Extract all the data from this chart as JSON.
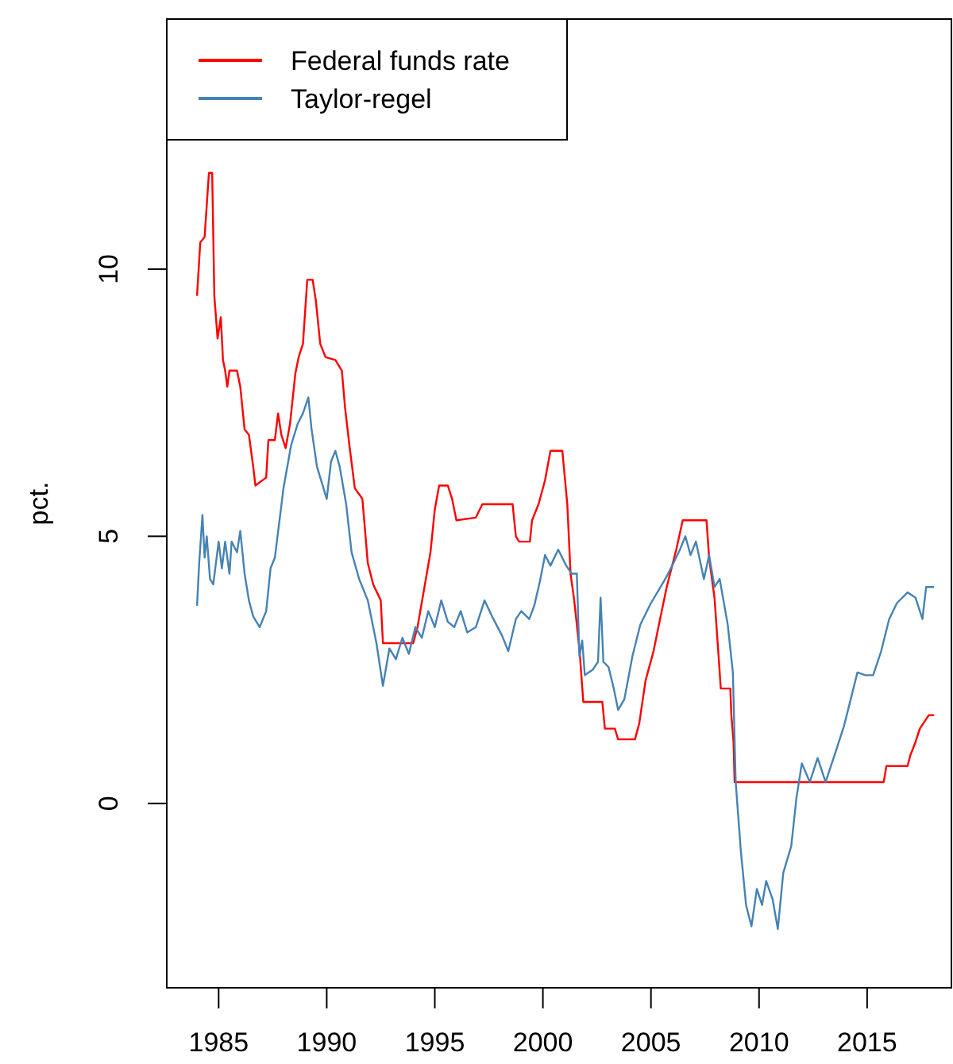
{
  "chart_data": {
    "type": "line",
    "ylabel": "pct.",
    "xlim": [
      1982.6,
      2018.9
    ],
    "xticks": [
      1985,
      1990,
      1995,
      2000,
      2005,
      2010,
      2015
    ],
    "ylim": [
      -3.45,
      14.68
    ],
    "yticks": [
      0,
      5,
      10
    ],
    "grid": false,
    "legend": "top left",
    "series": [
      {
        "name": "Federal funds rate",
        "color": "#ff0000",
        "x": [
          1984.0,
          1984.15,
          1984.35,
          1984.55,
          1984.7,
          1984.8,
          1984.95,
          1985.1,
          1985.2,
          1985.3,
          1985.4,
          1985.5,
          1985.85,
          1986.0,
          1986.2,
          1986.4,
          1986.6,
          1986.7,
          1987.2,
          1987.3,
          1987.6,
          1987.75,
          1987.9,
          1988.1,
          1988.3,
          1988.55,
          1988.7,
          1988.9,
          1989.1,
          1989.35,
          1989.5,
          1989.7,
          1989.95,
          1990.4,
          1990.7,
          1990.85,
          1991.05,
          1991.3,
          1991.65,
          1991.9,
          1992.15,
          1992.5,
          1992.6,
          1994.0,
          1994.2,
          1994.5,
          1994.8,
          1995.0,
          1995.2,
          1995.6,
          1995.8,
          1996.0,
          1996.9,
          1997.2,
          1998.6,
          1998.75,
          1998.9,
          1999.4,
          1999.5,
          1999.8,
          2000.1,
          2000.35,
          2000.9,
          2001.13,
          2001.28,
          2001.45,
          2001.7,
          2001.87,
          2002.75,
          2002.87,
          2003.33,
          2003.48,
          2004.26,
          2004.46,
          2004.75,
          2005.12,
          2005.37,
          2005.73,
          2006.17,
          2006.47,
          2007.57,
          2007.69,
          2007.94,
          2008.13,
          2008.23,
          2008.67,
          2008.72,
          2008.82,
          2008.87,
          2015.77,
          2015.89,
          2016.87,
          2017.0,
          2017.24,
          2017.44,
          2017.85,
          2018.1
        ],
        "values": [
          9.5,
          10.5,
          10.6,
          11.8,
          11.8,
          9.5,
          8.7,
          9.1,
          8.3,
          8.1,
          7.8,
          8.1,
          8.1,
          7.8,
          7.0,
          6.9,
          6.3,
          5.95,
          6.1,
          6.8,
          6.8,
          7.3,
          6.9,
          6.65,
          7.1,
          8.05,
          8.35,
          8.6,
          9.8,
          9.8,
          9.4,
          8.6,
          8.35,
          8.3,
          8.1,
          7.4,
          6.7,
          5.9,
          5.7,
          4.5,
          4.1,
          3.8,
          3.0,
          3.0,
          3.3,
          4.0,
          4.7,
          5.5,
          5.95,
          5.95,
          5.7,
          5.3,
          5.35,
          5.6,
          5.6,
          5.0,
          4.9,
          4.9,
          5.3,
          5.6,
          6.05,
          6.6,
          6.6,
          5.6,
          4.3,
          3.8,
          2.85,
          1.9,
          1.9,
          1.4,
          1.4,
          1.2,
          1.2,
          1.5,
          2.3,
          2.85,
          3.35,
          4.05,
          4.75,
          5.3,
          5.3,
          4.6,
          3.85,
          2.75,
          2.15,
          2.15,
          1.65,
          1.15,
          0.4,
          0.4,
          0.7,
          0.7,
          0.9,
          1.15,
          1.4,
          1.65,
          1.65
        ]
      },
      {
        "name": "Taylor-regel",
        "color": "#4682b4",
        "x": [
          1984.0,
          1984.1,
          1984.25,
          1984.35,
          1984.45,
          1984.6,
          1984.75,
          1985.0,
          1985.15,
          1985.3,
          1985.5,
          1985.6,
          1985.85,
          1986.0,
          1986.2,
          1986.4,
          1986.6,
          1986.9,
          1987.2,
          1987.4,
          1987.6,
          1988.0,
          1988.35,
          1988.65,
          1988.9,
          1989.15,
          1989.3,
          1989.55,
          1990.0,
          1990.2,
          1990.4,
          1990.6,
          1990.9,
          1991.15,
          1991.5,
          1991.9,
          1992.0,
          1992.3,
          1992.6,
          1992.9,
          1993.2,
          1993.5,
          1993.8,
          1994.1,
          1994.4,
          1994.7,
          1995.0,
          1995.3,
          1995.6,
          1995.9,
          1996.2,
          1996.5,
          1996.9,
          1997.3,
          1997.65,
          1998.1,
          1998.4,
          1998.75,
          1999.0,
          1999.37,
          1999.6,
          1999.86,
          2000.1,
          2000.35,
          2000.71,
          2001.08,
          2001.33,
          2001.57,
          2001.69,
          2001.82,
          2001.94,
          2002.3,
          2002.55,
          2002.67,
          2002.8,
          2003.04,
          2003.28,
          2003.48,
          2003.77,
          2004.14,
          2004.51,
          2005.0,
          2005.37,
          2005.73,
          2005.98,
          2006.34,
          2006.59,
          2006.83,
          2007.08,
          2007.45,
          2007.69,
          2007.94,
          2008.18,
          2008.55,
          2008.79,
          2008.92,
          2009.16,
          2009.4,
          2009.65,
          2009.9,
          2010.14,
          2010.33,
          2010.63,
          2010.87,
          2011.12,
          2011.49,
          2011.73,
          2011.98,
          2012.35,
          2012.71,
          2013.08,
          2013.57,
          2013.93,
          2014.18,
          2014.55,
          2014.92,
          2015.28,
          2015.65,
          2016.02,
          2016.38,
          2016.87,
          2017.24,
          2017.56,
          2017.73,
          2018.1
        ],
        "values": [
          3.7,
          4.5,
          5.4,
          4.6,
          5.0,
          4.2,
          4.1,
          4.9,
          4.4,
          4.9,
          4.3,
          4.9,
          4.7,
          5.1,
          4.3,
          3.8,
          3.5,
          3.3,
          3.6,
          4.4,
          4.6,
          5.9,
          6.7,
          7.1,
          7.3,
          7.6,
          7.0,
          6.3,
          5.7,
          6.4,
          6.6,
          6.3,
          5.6,
          4.7,
          4.2,
          3.8,
          3.6,
          3.0,
          2.2,
          2.9,
          2.7,
          3.1,
          2.8,
          3.3,
          3.1,
          3.6,
          3.3,
          3.8,
          3.4,
          3.3,
          3.6,
          3.2,
          3.3,
          3.8,
          3.5,
          3.15,
          2.85,
          3.45,
          3.6,
          3.45,
          3.7,
          4.15,
          4.65,
          4.45,
          4.75,
          4.45,
          4.3,
          4.3,
          2.75,
          3.05,
          2.4,
          2.5,
          2.65,
          3.85,
          2.65,
          2.55,
          2.15,
          1.75,
          1.95,
          2.75,
          3.35,
          3.75,
          4.0,
          4.25,
          4.45,
          4.75,
          5.0,
          4.65,
          4.9,
          4.2,
          4.65,
          4.05,
          4.2,
          3.35,
          2.45,
          0.4,
          -0.9,
          -1.9,
          -2.3,
          -1.6,
          -1.9,
          -1.45,
          -1.8,
          -2.35,
          -1.3,
          -0.8,
          0.1,
          0.75,
          0.4,
          0.85,
          0.4,
          1.0,
          1.45,
          1.85,
          2.45,
          2.4,
          2.4,
          2.85,
          3.45,
          3.75,
          3.95,
          3.85,
          3.45,
          4.05,
          4.05
        ]
      }
    ]
  }
}
